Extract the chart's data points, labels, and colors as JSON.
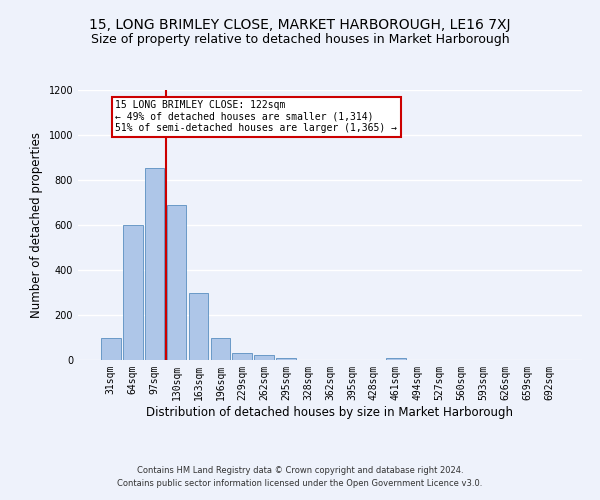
{
  "title": "15, LONG BRIMLEY CLOSE, MARKET HARBOROUGH, LE16 7XJ",
  "subtitle": "Size of property relative to detached houses in Market Harborough",
  "xlabel": "Distribution of detached houses by size in Market Harborough",
  "ylabel": "Number of detached properties",
  "footer_line1": "Contains HM Land Registry data © Crown copyright and database right 2024.",
  "footer_line2": "Contains public sector information licensed under the Open Government Licence v3.0.",
  "bar_labels": [
    "31sqm",
    "64sqm",
    "97sqm",
    "130sqm",
    "163sqm",
    "196sqm",
    "229sqm",
    "262sqm",
    "295sqm",
    "328sqm",
    "362sqm",
    "395sqm",
    "428sqm",
    "461sqm",
    "494sqm",
    "527sqm",
    "560sqm",
    "593sqm",
    "626sqm",
    "659sqm",
    "692sqm"
  ],
  "bar_values": [
    100,
    600,
    855,
    690,
    300,
    100,
    30,
    22,
    10,
    0,
    0,
    0,
    0,
    10,
    0,
    0,
    0,
    0,
    0,
    0,
    0
  ],
  "bar_color": "#aec6e8",
  "bar_edge_color": "#5a8fc0",
  "highlight_line_color": "#cc0000",
  "annotation_text": "15 LONG BRIMLEY CLOSE: 122sqm\n← 49% of detached houses are smaller (1,314)\n51% of semi-detached houses are larger (1,365) →",
  "annotation_box_color": "#ffffff",
  "annotation_box_edge_color": "#cc0000",
  "ylim": [
    0,
    1200
  ],
  "yticks": [
    0,
    200,
    400,
    600,
    800,
    1000,
    1200
  ],
  "background_color": "#eef2fb",
  "plot_bg_color": "#eef2fb",
  "grid_color": "#ffffff",
  "title_fontsize": 10,
  "subtitle_fontsize": 9,
  "tick_fontsize": 7,
  "axis_label_fontsize": 8.5,
  "footer_fontsize": 6
}
